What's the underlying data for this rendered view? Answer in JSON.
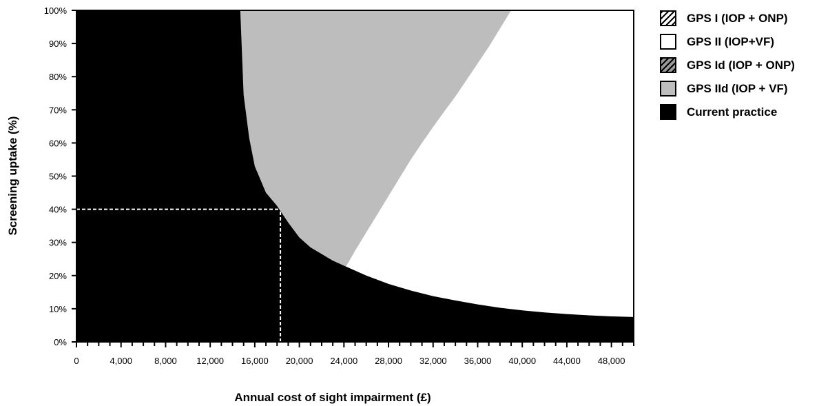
{
  "chart_data": {
    "type": "area",
    "title": "",
    "xlabel": "Annual cost of sight impairment (£)",
    "ylabel": "Screening uptake (%)",
    "xlim": [
      0,
      50000
    ],
    "ylim": [
      0,
      100
    ],
    "x_ticks": [
      0,
      4000,
      8000,
      12000,
      16000,
      20000,
      24000,
      28000,
      32000,
      36000,
      40000,
      44000,
      48000
    ],
    "x_tick_labels": [
      "0",
      "4,000",
      "8,000",
      "12,000",
      "16,000",
      "20,000",
      "24,000",
      "28,000",
      "32,000",
      "36,000",
      "40,000",
      "44,000",
      "48,000"
    ],
    "x_minor_step": 1000,
    "y_ticks": [
      0,
      10,
      20,
      30,
      40,
      50,
      60,
      70,
      80,
      90,
      100
    ],
    "y_tick_labels": [
      "0%",
      "10%",
      "20%",
      "30%",
      "40%",
      "50%",
      "60%",
      "70%",
      "80%",
      "90%",
      "100%"
    ],
    "grid": false,
    "legend_position": "right",
    "legend": [
      {
        "label": "GPS I (IOP + ONP)",
        "fill": "hatched-white"
      },
      {
        "label": "GPS II (IOP+VF)",
        "fill": "#ffffff"
      },
      {
        "label": "GPS Id (IOP + ONP)",
        "fill": "hatched-gray"
      },
      {
        "label": "GPS IId (IOP + VF)",
        "fill": "#bdbdbd"
      },
      {
        "label": "Current practice",
        "fill": "#000000"
      }
    ],
    "boundaries": {
      "current_practice_upper": {
        "x": [
          14700,
          15000,
          15500,
          16000,
          17000,
          18000,
          19000,
          20000,
          21000,
          22000,
          23000,
          24000,
          26000,
          28000,
          30000,
          32000,
          34000,
          36000,
          38000,
          40000,
          42000,
          44000,
          46000,
          48000,
          50000
        ],
        "y": [
          100,
          74.5,
          61.5,
          53.0,
          45.0,
          41.0,
          36.0,
          31.5,
          28.5,
          26.5,
          24.5,
          23.0,
          20.0,
          17.5,
          15.5,
          13.8,
          12.5,
          11.3,
          10.3,
          9.5,
          8.9,
          8.4,
          8.0,
          7.7,
          7.5
        ]
      },
      "gps_iid_upper": {
        "x": [
          24200,
          25000,
          26000,
          27000,
          28000,
          29000,
          30000,
          31000,
          32000,
          33000,
          34000,
          35000,
          36000,
          37000,
          38000,
          39000
        ],
        "y": [
          22.8,
          27.5,
          33.0,
          38.5,
          44.0,
          49.5,
          55.0,
          60.0,
          64.8,
          69.5,
          74.0,
          79.0,
          84.0,
          89.0,
          94.5,
          100
        ]
      }
    },
    "reference_lines": [
      {
        "style": "dashed",
        "color": "#ffffff",
        "x": [
          0,
          18300
        ],
        "y": [
          40,
          40
        ]
      },
      {
        "style": "dashed",
        "color": "#ffffff",
        "x": [
          18300,
          18300
        ],
        "y": [
          0,
          40
        ]
      }
    ]
  }
}
